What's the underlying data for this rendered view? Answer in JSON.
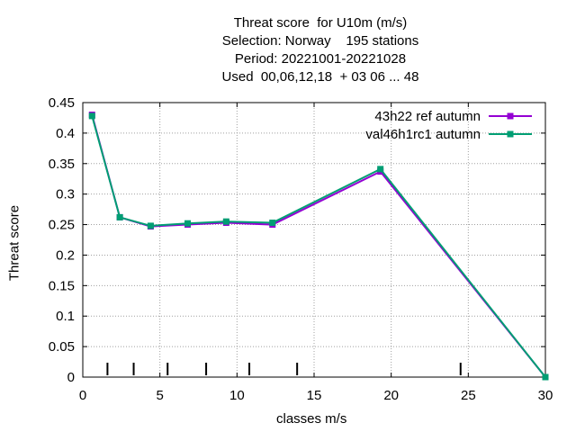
{
  "title_lines": [
    "Threat score  for U10m (m/s)",
    "Selection: Norway    195 stations",
    "Period: 20221001-20221028",
    "Used  00,06,12,18  + 03 06 ... 48"
  ],
  "chart_data": {
    "type": "line",
    "xlabel": "classes m/s",
    "ylabel": "Threat score",
    "xlim": [
      0,
      30
    ],
    "ylim": [
      0,
      0.45
    ],
    "x_ticks": [
      0,
      5,
      10,
      15,
      20,
      25,
      30
    ],
    "x_tick_labels": [
      "0",
      "5",
      "10",
      "15",
      "20",
      "25",
      "30"
    ],
    "y_ticks": [
      0,
      0.05,
      0.1,
      0.15,
      0.2,
      0.25,
      0.3,
      0.35,
      0.4,
      0.45
    ],
    "y_tick_labels": [
      "0",
      "0.05",
      "0.1",
      "0.15",
      "0.2",
      "0.25",
      "0.3",
      "0.35",
      "0.4",
      "0.45"
    ],
    "grid": true,
    "legend_position": "top-right",
    "class_markers_x": [
      1.6,
      3.3,
      5.5,
      8.0,
      10.8,
      13.9,
      24.5
    ],
    "series": [
      {
        "name": "43h22 ref autumn",
        "color": "#9400d3",
        "x": [
          0.6,
          2.4,
          4.4,
          6.8,
          9.3,
          12.3,
          19.3,
          30.0
        ],
        "y": [
          0.43,
          0.262,
          0.247,
          0.25,
          0.253,
          0.25,
          0.337,
          0.0
        ]
      },
      {
        "name": "val46h1rc1 autumn",
        "color": "#009e73",
        "x": [
          0.6,
          2.4,
          4.4,
          6.8,
          9.3,
          12.3,
          19.3,
          30.0
        ],
        "y": [
          0.428,
          0.262,
          0.248,
          0.252,
          0.255,
          0.253,
          0.341,
          0.0
        ]
      }
    ]
  }
}
